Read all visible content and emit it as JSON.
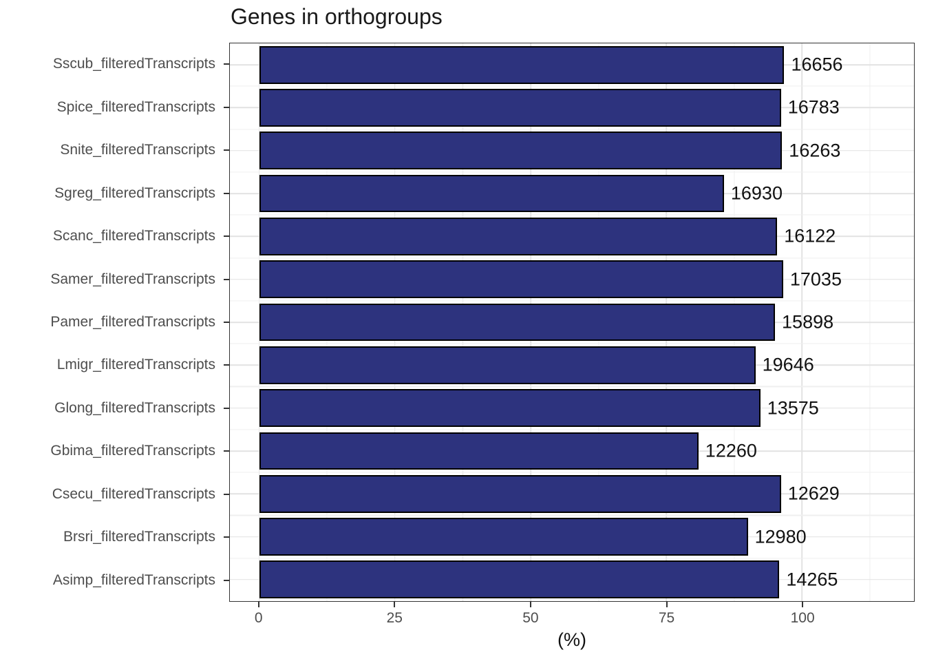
{
  "chart_data": {
    "type": "bar",
    "orientation": "horizontal",
    "title": "Genes in orthogroups",
    "xlabel": "(%)",
    "categories": [
      "Sscub_filteredTranscripts",
      "Spice_filteredTranscripts",
      "Snite_filteredTranscripts",
      "Sgreg_filteredTranscripts",
      "Scanc_filteredTranscripts",
      "Samer_filteredTranscripts",
      "Pamer_filteredTranscripts",
      "Lmigr_filteredTranscripts",
      "Glong_filteredTranscripts",
      "Gbima_filteredTranscripts",
      "Csecu_filteredTranscripts",
      "Brsri_filteredTranscripts",
      "Asimp_filteredTranscripts"
    ],
    "values_pct": [
      96.7,
      96.1,
      96.3,
      85.6,
      95.4,
      96.5,
      95.0,
      91.4,
      92.3,
      80.9,
      96.1,
      90.0,
      95.8
    ],
    "bar_value_labels": [
      "16656",
      "16783",
      "16263",
      "16930",
      "16122",
      "17035",
      "15898",
      "19646",
      "13575",
      "12260",
      "12629",
      "12980",
      "14265"
    ],
    "x_ticks": [
      "0",
      "25",
      "50",
      "75",
      "100"
    ],
    "x_tick_values": [
      0,
      25,
      50,
      75,
      100
    ],
    "x_minor_tick_values": [
      12.5,
      37.5,
      62.5,
      87.5,
      112.5
    ],
    "xlim": [
      -5.4,
      120.6
    ],
    "grid": "major+minor",
    "legend": false,
    "bar_color": "#2d337e",
    "bar_border_color": "#000000",
    "axis_text_color": "#4d4d4d",
    "value_label_color": "#111111"
  }
}
